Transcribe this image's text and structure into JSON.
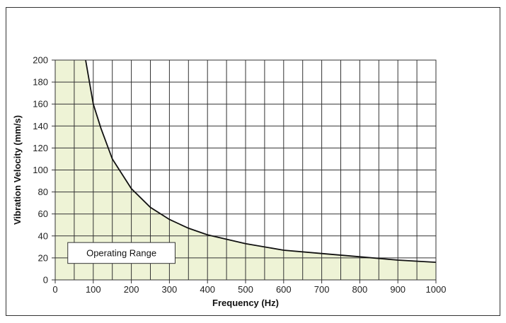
{
  "chart_data": {
    "type": "area",
    "xlabel": "Frequency (Hz)",
    "ylabel": "Vibration Velocity (mm/s)",
    "xlim": [
      0,
      1000
    ],
    "ylim": [
      0,
      200
    ],
    "x_ticks": [
      0,
      100,
      200,
      300,
      400,
      500,
      600,
      700,
      800,
      900,
      1000
    ],
    "y_ticks": [
      0,
      20,
      40,
      60,
      80,
      100,
      120,
      140,
      160,
      180,
      200
    ],
    "grid": true,
    "series": [
      {
        "x": [
          80,
          90,
          100,
          120,
          150,
          200,
          250,
          300,
          350,
          400,
          500,
          600,
          700,
          800,
          900,
          1000
        ],
        "y": [
          200,
          180,
          160,
          138,
          110,
          83,
          66,
          55,
          47,
          41,
          33,
          27,
          24,
          21,
          18,
          16
        ]
      }
    ],
    "region_label": "Operating Range",
    "fill_color": "#eef3d6",
    "line_color": "#111111",
    "grid_color": "#333333"
  }
}
